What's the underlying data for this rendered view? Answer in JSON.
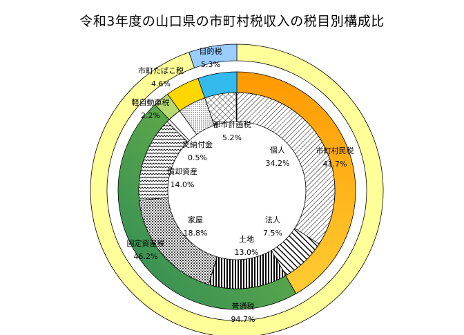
{
  "chart_data": {
    "type": "pie",
    "title": "令和3年度の山口県の市町村税収入の税目別構成比",
    "rings": [
      {
        "ring": "outer",
        "slices": [
          {
            "label": "普通税",
            "value": 94.7,
            "value_text": "94.7%",
            "color": "#ffff99"
          },
          {
            "label": "目的税",
            "value": 5.3,
            "value_text": "5.3%",
            "color": "#99ccff"
          }
        ]
      },
      {
        "ring": "middle",
        "slices": [
          {
            "label": "市町村民税",
            "value": 41.7,
            "value_text": "41.7%",
            "color": "#ffa500"
          },
          {
            "label": "固定資産税",
            "value": 46.2,
            "value_text": "46.2%",
            "color": "#3a9a5b"
          },
          {
            "label": "軽自動車税",
            "value": 2.2,
            "value_text": "2.2%",
            "color": "#b6d96f"
          },
          {
            "label": "市町たばこ税",
            "value": 4.6,
            "value_text": "4.6%",
            "color": "#ffd700"
          },
          {
            "label": "目的税",
            "value": 5.3,
            "value_text": "5.3%",
            "color": "#33bbee"
          }
        ]
      },
      {
        "ring": "inner",
        "slices": [
          {
            "label": "個人",
            "value": 34.2,
            "value_text": "34.2%",
            "pattern": "diag"
          },
          {
            "label": "法人",
            "value": 7.5,
            "value_text": "7.5%",
            "pattern": "thickdiag"
          },
          {
            "label": "土地",
            "value": 13.0,
            "value_text": "13.0%",
            "pattern": "vert"
          },
          {
            "label": "家屋",
            "value": 18.8,
            "value_text": "18.8%",
            "pattern": "dots"
          },
          {
            "label": "償却資産",
            "value": 14.0,
            "value_text": "14.0%",
            "pattern": "wave"
          },
          {
            "label": "交納付金",
            "value": 0.5,
            "value_text": "0.5%",
            "pattern": "white"
          },
          {
            "label": "軽自動車税",
            "value": 2.2,
            "value_text": "2.2%",
            "pattern": "white"
          },
          {
            "label": "市町たばこ税",
            "value": 4.6,
            "value_text": "4.6%",
            "pattern": "finedots"
          },
          {
            "label": "都市計画税",
            "value": 5.2,
            "value_text": "5.2%",
            "pattern": "cross"
          },
          {
            "label": "",
            "value": 0.1,
            "value_text": "",
            "pattern": "white"
          }
        ]
      }
    ]
  }
}
